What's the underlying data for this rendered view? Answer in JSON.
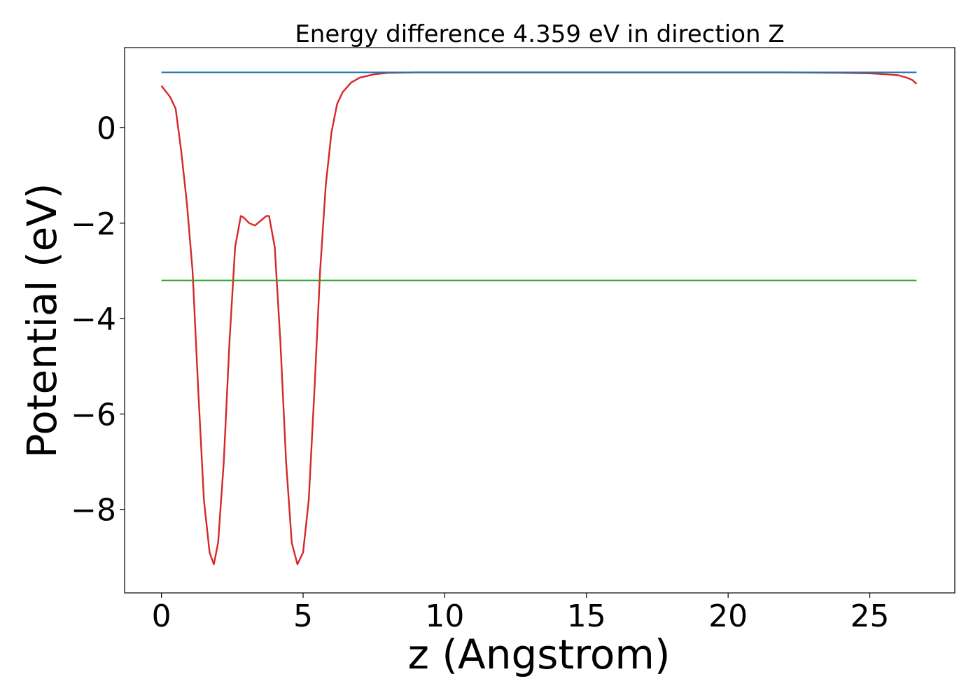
{
  "chart_data": {
    "type": "line",
    "title": "Energy difference 4.359 eV in direction Z",
    "xlabel": "z (Angstrom)",
    "ylabel": "Potential (eV)",
    "xlim": [
      -1.3,
      28.0
    ],
    "ylim": [
      -9.75,
      1.68
    ],
    "xticks": [
      0,
      5,
      10,
      15,
      20,
      25
    ],
    "xtick_labels": [
      "0",
      "5",
      "10",
      "15",
      "20",
      "25"
    ],
    "yticks": [
      0,
      -2,
      -4,
      -6,
      -8
    ],
    "ytick_labels": [
      "0",
      "−2",
      "−4",
      "−6",
      "−8"
    ],
    "grid": false,
    "legend": "none",
    "series": [
      {
        "color": "#d62728",
        "x": [
          0.0,
          0.3,
          0.5,
          0.7,
          0.9,
          1.1,
          1.3,
          1.5,
          1.7,
          1.85,
          2.0,
          2.2,
          2.4,
          2.6,
          2.8,
          2.9,
          3.1,
          3.3,
          3.5,
          3.7,
          3.8,
          4.0,
          4.2,
          4.4,
          4.6,
          4.8,
          5.0,
          5.2,
          5.4,
          5.6,
          5.8,
          6.0,
          6.2,
          6.4,
          6.7,
          7.0,
          7.5,
          8.0,
          9.0,
          10.0,
          12.0,
          15.0,
          18.0,
          20.0,
          22.0,
          24.0,
          25.0,
          25.6,
          26.0,
          26.3,
          26.5,
          26.65
        ],
        "y": [
          0.88,
          0.65,
          0.4,
          -0.5,
          -1.6,
          -3.0,
          -5.5,
          -7.8,
          -8.9,
          -9.15,
          -8.7,
          -7.0,
          -4.5,
          -2.5,
          -1.85,
          -1.88,
          -2.0,
          -2.05,
          -1.95,
          -1.85,
          -1.85,
          -2.5,
          -4.5,
          -7.0,
          -8.7,
          -9.15,
          -8.9,
          -7.8,
          -5.5,
          -3.0,
          -1.2,
          -0.1,
          0.5,
          0.75,
          0.95,
          1.05,
          1.12,
          1.15,
          1.16,
          1.16,
          1.16,
          1.16,
          1.16,
          1.16,
          1.16,
          1.15,
          1.14,
          1.12,
          1.1,
          1.05,
          1.0,
          0.92
        ]
      },
      {
        "color": "#1f77b4",
        "x": [
          0.0,
          26.65
        ],
        "y": [
          1.16,
          1.16
        ]
      },
      {
        "color": "#2ca02c",
        "x": [
          0.0,
          26.65
        ],
        "y": [
          -3.2,
          -3.2
        ]
      }
    ]
  }
}
